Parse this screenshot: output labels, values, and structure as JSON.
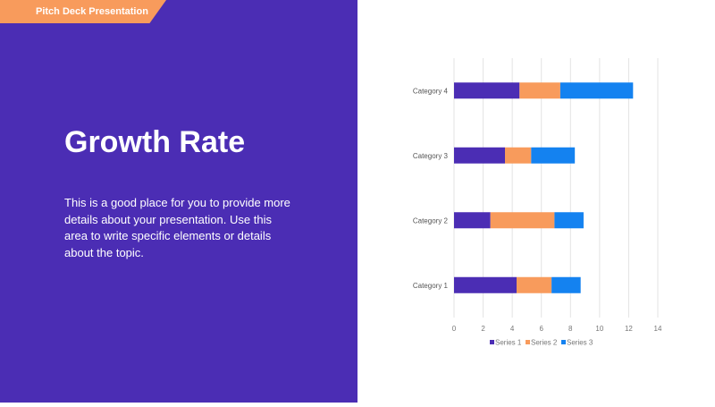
{
  "header": {
    "tag": "Pitch Deck Presentation"
  },
  "slide": {
    "title": "Growth Rate",
    "body": "This is a good place for you to provide more details about your presentation. Use this area to write specific elements or details about the topic."
  },
  "colors": {
    "panel": "#4b2db4",
    "accent": "#f89b5c",
    "series": [
      "#4b2db4",
      "#f89b5c",
      "#1482f0"
    ]
  },
  "chart_data": {
    "type": "bar",
    "orientation": "horizontal",
    "stacked": true,
    "categories": [
      "Category 1",
      "Category 2",
      "Category 3",
      "Category 4"
    ],
    "series": [
      {
        "name": "Series 1",
        "values": [
          4.3,
          2.5,
          3.5,
          4.5
        ]
      },
      {
        "name": "Series 2",
        "values": [
          2.4,
          4.4,
          1.8,
          2.8
        ]
      },
      {
        "name": "Series 3",
        "values": [
          2,
          2,
          3,
          5
        ]
      }
    ],
    "xlim": [
      0,
      14
    ],
    "xticks": [
      "0",
      "2",
      "4",
      "6",
      "8",
      "10",
      "12",
      "14"
    ],
    "grid": true,
    "legend": "bottom"
  }
}
